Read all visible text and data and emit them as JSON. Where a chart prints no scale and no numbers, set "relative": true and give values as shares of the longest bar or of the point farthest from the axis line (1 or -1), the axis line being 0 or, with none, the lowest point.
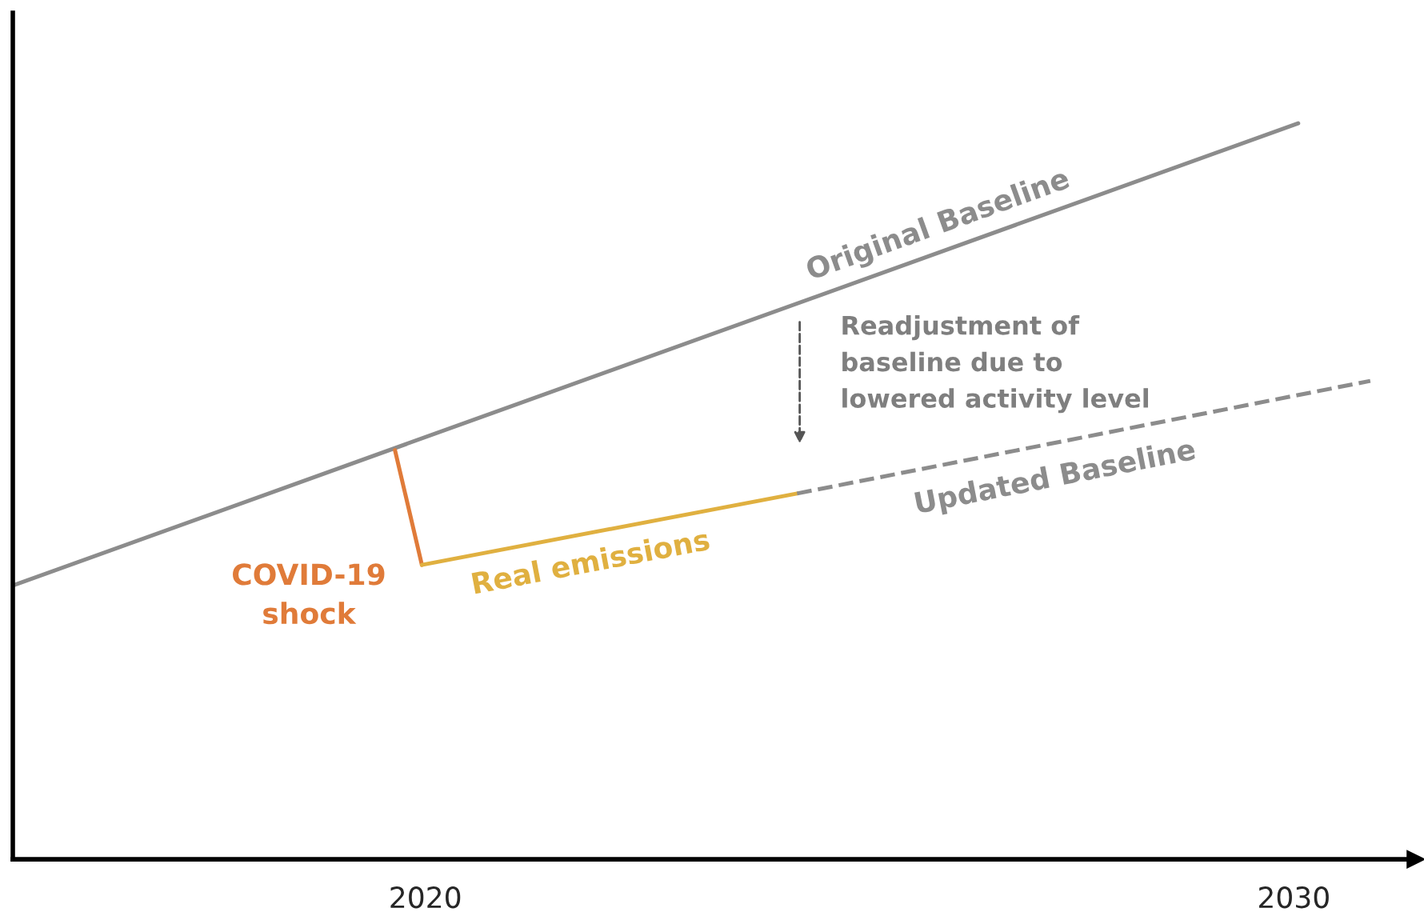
{
  "chart_data": {
    "type": "line",
    "relative": true,
    "xlim": [
      2015.25,
      2031.4
    ],
    "xticks": [
      2020,
      2030
    ],
    "series": [
      {
        "name": "Original Baseline",
        "color": "#8c8c8c",
        "line_style": "solid",
        "x": [
          2015.25,
          2030.05
        ],
        "values": [
          0.372,
          1
        ]
      },
      {
        "name": "COVID-19\nshock",
        "color": "#e07b39",
        "line_style": "solid",
        "x": [
          2019.65,
          2019.96
        ],
        "values": [
          0.556,
          0.4
        ]
      },
      {
        "name": "Real emissions",
        "color": "#e0b040",
        "line_style": "solid",
        "x": [
          2019.96,
          2024.28
        ],
        "values": [
          0.4,
          0.497
        ]
      },
      {
        "name": "Updated Baseline",
        "color": "#8c8c8c",
        "line_style": "dashed",
        "x": [
          2024.28,
          2030.88
        ],
        "values": [
          0.497,
          0.65
        ]
      }
    ],
    "annotations": [
      "Readjustment of\nbaseline due to\nlowered activity level"
    ],
    "legend": false,
    "grid": false
  }
}
